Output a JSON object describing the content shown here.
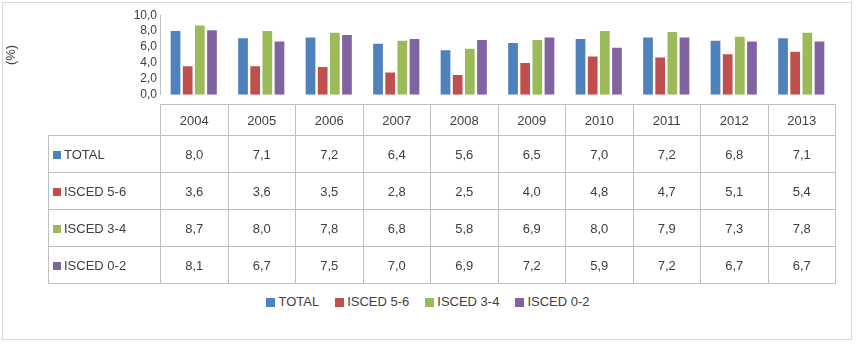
{
  "chart_data": {
    "type": "bar",
    "y_label": "(%)",
    "categories": [
      "2004",
      "2005",
      "2006",
      "2007",
      "2008",
      "2009",
      "2010",
      "2011",
      "2012",
      "2013"
    ],
    "series": [
      {
        "name": "TOTAL",
        "color": "#4f81bd",
        "values": [
          8.0,
          7.1,
          7.2,
          6.4,
          5.6,
          6.5,
          7.0,
          7.2,
          6.8,
          7.1
        ],
        "value_labels": [
          "8,0",
          "7,1",
          "7,2",
          "6,4",
          "5,6",
          "6,5",
          "7,0",
          "7,2",
          "6,8",
          "7,1"
        ]
      },
      {
        "name": "ISCED 5-6",
        "color": "#c0504d",
        "values": [
          3.6,
          3.6,
          3.5,
          2.8,
          2.5,
          4.0,
          4.8,
          4.7,
          5.1,
          5.4
        ],
        "value_labels": [
          "3,6",
          "3,6",
          "3,5",
          "2,8",
          "2,5",
          "4,0",
          "4,8",
          "4,7",
          "5,1",
          "5,4"
        ]
      },
      {
        "name": "ISCED 3-4",
        "color": "#9bbb59",
        "values": [
          8.7,
          8.0,
          7.8,
          6.8,
          5.8,
          6.9,
          8.0,
          7.9,
          7.3,
          7.8
        ],
        "value_labels": [
          "8,7",
          "8,0",
          "7,8",
          "6,8",
          "5,8",
          "6,9",
          "8,0",
          "7,9",
          "7,3",
          "7,8"
        ]
      },
      {
        "name": "ISCED 0-2",
        "color": "#8064a2",
        "values": [
          8.1,
          6.7,
          7.5,
          7.0,
          6.9,
          7.2,
          5.9,
          7.2,
          6.7,
          6.7
        ],
        "value_labels": [
          "8,1",
          "6,7",
          "7,5",
          "7,0",
          "6,9",
          "7,2",
          "5,9",
          "7,2",
          "6,7",
          "6,7"
        ]
      }
    ],
    "ylim": [
      0,
      10
    ],
    "yticks": [
      {
        "value": 0,
        "label": "0,0"
      },
      {
        "value": 2,
        "label": "2,0"
      },
      {
        "value": 4,
        "label": "4,0"
      },
      {
        "value": 6,
        "label": "6,0"
      },
      {
        "value": 8,
        "label": "8,0"
      },
      {
        "value": 10,
        "label": "10,0"
      }
    ],
    "grid": false,
    "legend": "bottom"
  }
}
